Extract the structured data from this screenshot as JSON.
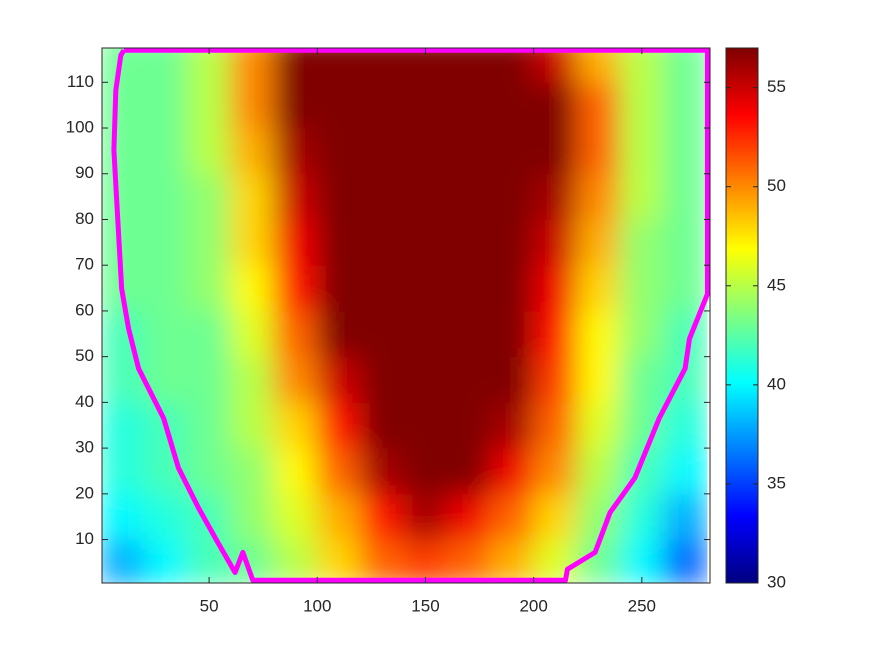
{
  "chart_data": {
    "type": "heatmap",
    "colormap": "jet",
    "x": [
      10,
      30,
      50,
      70,
      90,
      110,
      130,
      150,
      170,
      190,
      210,
      230,
      250,
      270
    ],
    "y": [
      5,
      15,
      25,
      35,
      45,
      55,
      65,
      75,
      85,
      95,
      105,
      115
    ],
    "z": [
      [
        38,
        40,
        42,
        43,
        45,
        48,
        51,
        52,
        51,
        49,
        46,
        43,
        40,
        36
      ],
      [
        40,
        41,
        42,
        44,
        46,
        49,
        53,
        56,
        54,
        51,
        48,
        44,
        41,
        38
      ],
      [
        41,
        42,
        43,
        44,
        47,
        51,
        56,
        57,
        57,
        54,
        50,
        45,
        42,
        40
      ],
      [
        41,
        42,
        43,
        45,
        48,
        53,
        57,
        57,
        57,
        56,
        51,
        46,
        43,
        41
      ],
      [
        42,
        43,
        43,
        45,
        50,
        55,
        57,
        57,
        57,
        57,
        52,
        47,
        43,
        42
      ],
      [
        42,
        43,
        43,
        46,
        51,
        57,
        57,
        57,
        57,
        57,
        53,
        47,
        44,
        42
      ],
      [
        43,
        43,
        44,
        47,
        53,
        57,
        57,
        57,
        57,
        57,
        54,
        48,
        44,
        43
      ],
      [
        43,
        43,
        44,
        48,
        54,
        57,
        57,
        57,
        57,
        57,
        55,
        49,
        44,
        43
      ],
      [
        43,
        43,
        44,
        48,
        55,
        57,
        57,
        57,
        57,
        57,
        56,
        50,
        45,
        43
      ],
      [
        43,
        43,
        45,
        49,
        56,
        57,
        57,
        57,
        57,
        57,
        57,
        51,
        45,
        43
      ],
      [
        43,
        43,
        45,
        50,
        57,
        57,
        57,
        57,
        57,
        57,
        57,
        51,
        45,
        43
      ],
      [
        43,
        43,
        45,
        50,
        57,
        57,
        57,
        57,
        57,
        57,
        55,
        49,
        45,
        43
      ]
    ],
    "xlim": [
      0.5,
      281.5
    ],
    "ylim": [
      0.5,
      117.5
    ],
    "xticks": [
      50,
      100,
      150,
      200,
      250
    ],
    "yticks": [
      10,
      20,
      30,
      40,
      50,
      60,
      70,
      80,
      90,
      100,
      110
    ],
    "clim": [
      30,
      57
    ],
    "cticks": [
      30,
      35,
      40,
      45,
      50,
      55
    ],
    "boundary": {
      "color": "#ff00ff",
      "x": [
        10.6,
        280.3,
        280.3,
        272,
        270,
        258,
        246.8,
        235.3,
        228.4,
        215.6,
        214.7,
        70.2,
        65.6,
        62,
        54.1,
        45,
        35.8,
        29,
        17.4,
        12.8,
        9.6,
        8.3,
        6,
        6.9,
        9.2,
        10.6
      ],
      "y": [
        117,
        117,
        63.7,
        53.9,
        47.4,
        36.5,
        23.5,
        15.9,
        7.2,
        3.5,
        1.1,
        1.1,
        7.2,
        2.8,
        9.3,
        17,
        25.7,
        36.5,
        47.4,
        56.1,
        64.8,
        75.7,
        95.2,
        108.3,
        115.9,
        117
      ]
    }
  }
}
